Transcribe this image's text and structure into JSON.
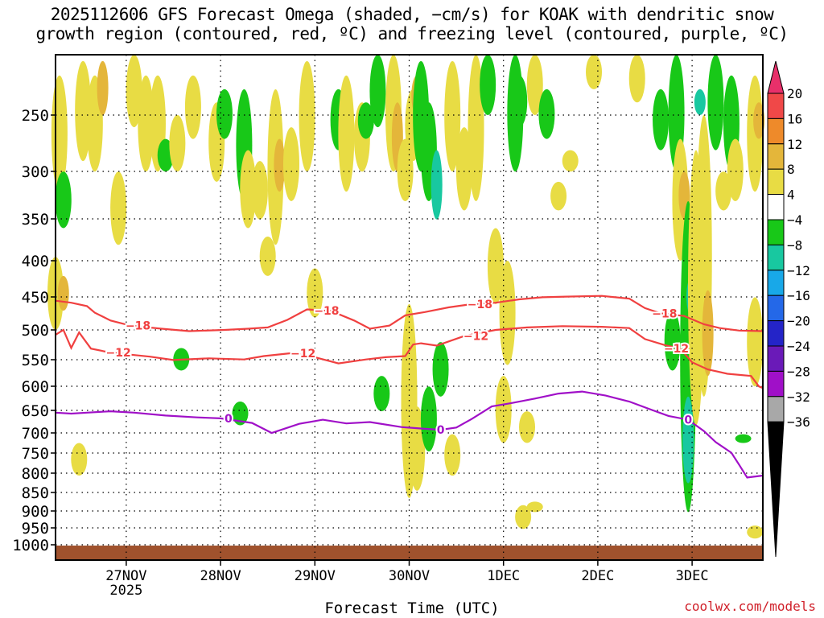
{
  "title_line1": "2025112606 GFS Forecast Omega (shaded, −cm/s) for KOAK with dendritic snow",
  "title_line2": "growth region (contoured, red, ºC) and freezing level (contoured, purple, ºC)",
  "credit": "coolwx.com/models",
  "chart_data": {
    "type": "heatmap",
    "xlabel": "Forecast Time (UTC)",
    "x_ticks": [
      {
        "label": "27NOV",
        "sub": "2025",
        "hours": 24
      },
      {
        "label": "28NOV",
        "sub": "",
        "hours": 48
      },
      {
        "label": "29NOV",
        "sub": "",
        "hours": 72
      },
      {
        "label": "30NOV",
        "sub": "",
        "hours": 96
      },
      {
        "label": "1DEC",
        "sub": "",
        "hours": 120
      },
      {
        "label": "2DEC",
        "sub": "",
        "hours": 144
      },
      {
        "label": "3DEC",
        "sub": "",
        "hours": 168
      }
    ],
    "xlim_hours": [
      6,
      186
    ],
    "y_axis": "pressure (hPa)",
    "y_ticks": [
      250,
      300,
      350,
      400,
      450,
      500,
      550,
      600,
      650,
      700,
      750,
      800,
      850,
      900,
      950,
      1000
    ],
    "ylim": [
      200,
      1020
    ],
    "colorbar": {
      "labels": [
        "20",
        "16",
        "12",
        "8",
        "4",
        "−4",
        "−8",
        "−12",
        "−16",
        "−20",
        "−24",
        "−28",
        "−32",
        "−36"
      ],
      "colors": [
        "#e8306a",
        "#f04848",
        "#ee8a2a",
        "#e4b63a",
        "#e8dc44",
        "#ffffff",
        "#18c818",
        "#18c8a0",
        "#18a8e8",
        "#2468e8",
        "#2424c8",
        "#6a1ab8",
        "#a010c8",
        "#a8a8a8",
        "#000000"
      ]
    },
    "shading": [
      {
        "t": 6,
        "p1": 395,
        "p2": 500,
        "v": 5
      },
      {
        "t": 8,
        "p1": 420,
        "p2": 470,
        "v": 9
      },
      {
        "t": 7,
        "p1": 220,
        "p2": 320,
        "v": 5
      },
      {
        "t": 8,
        "p1": 300,
        "p2": 360,
        "v": -6
      },
      {
        "t": 13,
        "p1": 210,
        "p2": 290,
        "v": 5
      },
      {
        "t": 16,
        "p1": 220,
        "p2": 300,
        "v": 6
      },
      {
        "t": 18,
        "p1": 210,
        "p2": 250,
        "v": 9
      },
      {
        "t": 22,
        "p1": 300,
        "p2": 380,
        "v": 5
      },
      {
        "t": 26,
        "p1": 200,
        "p2": 260,
        "v": 5
      },
      {
        "t": 29,
        "p1": 220,
        "p2": 300,
        "v": 5
      },
      {
        "t": 32,
        "p1": 220,
        "p2": 300,
        "v": 5
      },
      {
        "t": 34,
        "p1": 270,
        "p2": 300,
        "v": -6
      },
      {
        "t": 12,
        "p1": 720,
        "p2": 800,
        "v": 5
      },
      {
        "t": 37,
        "p1": 250,
        "p2": 300,
        "v": 5
      },
      {
        "t": 41,
        "p1": 220,
        "p2": 270,
        "v": 5
      },
      {
        "t": 47,
        "p1": 240,
        "p2": 310,
        "v": 5
      },
      {
        "t": 49,
        "p1": 230,
        "p2": 270,
        "v": -6
      },
      {
        "t": 54,
        "p1": 230,
        "p2": 330,
        "v": -6
      },
      {
        "t": 55,
        "p1": 280,
        "p2": 360,
        "v": 5
      },
      {
        "t": 58,
        "p1": 290,
        "p2": 350,
        "v": 5
      },
      {
        "t": 60,
        "p1": 370,
        "p2": 420,
        "v": 5
      },
      {
        "t": 62,
        "p1": 230,
        "p2": 380,
        "v": 5
      },
      {
        "t": 63,
        "p1": 270,
        "p2": 320,
        "v": 9
      },
      {
        "t": 66,
        "p1": 260,
        "p2": 330,
        "v": 5
      },
      {
        "t": 70,
        "p1": 210,
        "p2": 300,
        "v": 5
      },
      {
        "t": 72,
        "p1": 410,
        "p2": 480,
        "v": 5
      },
      {
        "t": 78,
        "p1": 230,
        "p2": 280,
        "v": -6
      },
      {
        "t": 80,
        "p1": 220,
        "p2": 320,
        "v": 5
      },
      {
        "t": 84,
        "p1": 240,
        "p2": 300,
        "v": 5
      },
      {
        "t": 88,
        "p1": 200,
        "p2": 260,
        "v": -6
      },
      {
        "t": 92,
        "p1": 200,
        "p2": 300,
        "v": 5
      },
      {
        "t": 93,
        "p1": 240,
        "p2": 300,
        "v": 9
      },
      {
        "t": 95,
        "p1": 270,
        "p2": 330,
        "v": 5
      },
      {
        "t": 97,
        "p1": 230,
        "p2": 290,
        "v": 5
      },
      {
        "t": 98,
        "p1": 220,
        "p2": 250,
        "v": 9
      },
      {
        "t": 99,
        "p1": 210,
        "p2": 300,
        "v": -6
      },
      {
        "t": 101,
        "p1": 240,
        "p2": 330,
        "v": -6
      },
      {
        "t": 103,
        "p1": 280,
        "p2": 350,
        "v": -10
      },
      {
        "t": 107,
        "p1": 210,
        "p2": 300,
        "v": 5
      },
      {
        "t": 110,
        "p1": 260,
        "p2": 340,
        "v": 5
      },
      {
        "t": 113,
        "p1": 200,
        "p2": 330,
        "v": 5
      },
      {
        "t": 116,
        "p1": 200,
        "p2": 250,
        "v": -6
      },
      {
        "t": 118,
        "p1": 360,
        "p2": 460,
        "v": 5
      },
      {
        "t": 121,
        "p1": 400,
        "p2": 560,
        "v": 5
      },
      {
        "t": 123,
        "p1": 200,
        "p2": 300,
        "v": -6
      },
      {
        "t": 124,
        "p1": 220,
        "p2": 260,
        "v": -6
      },
      {
        "t": 126,
        "p1": 650,
        "p2": 720,
        "v": 5
      },
      {
        "t": 128,
        "p1": 200,
        "p2": 250,
        "v": 5
      },
      {
        "t": 131,
        "p1": 230,
        "p2": 270,
        "v": -6
      },
      {
        "t": 134,
        "p1": 310,
        "p2": 340,
        "v": 5
      },
      {
        "t": 137,
        "p1": 280,
        "p2": 300,
        "v": 5
      },
      {
        "t": 143,
        "p1": 200,
        "p2": 230,
        "v": 5
      },
      {
        "t": 154,
        "p1": 200,
        "p2": 240,
        "v": 5
      },
      {
        "t": 160,
        "p1": 230,
        "p2": 280,
        "v": -6
      },
      {
        "t": 163,
        "p1": 470,
        "p2": 570,
        "v": -6
      },
      {
        "t": 164,
        "p1": 200,
        "p2": 300,
        "v": -6
      },
      {
        "t": 165,
        "p1": 270,
        "p2": 400,
        "v": 5
      },
      {
        "t": 166,
        "p1": 300,
        "p2": 350,
        "v": 9
      },
      {
        "t": 167,
        "p1": 330,
        "p2": 900,
        "v": -6
      },
      {
        "t": 168,
        "p1": 420,
        "p2": 480,
        "v": -10
      },
      {
        "t": 169,
        "p1": 280,
        "p2": 680,
        "v": 5
      },
      {
        "t": 170,
        "p1": 230,
        "p2": 250,
        "v": -10
      },
      {
        "t": 171,
        "p1": 250,
        "p2": 620,
        "v": 5
      },
      {
        "t": 172,
        "p1": 440,
        "p2": 580,
        "v": 9
      },
      {
        "t": 174,
        "p1": 200,
        "p2": 280,
        "v": -6
      },
      {
        "t": 176,
        "p1": 300,
        "p2": 340,
        "v": 5
      },
      {
        "t": 178,
        "p1": 220,
        "p2": 300,
        "v": -6
      },
      {
        "t": 179,
        "p1": 270,
        "p2": 330,
        "v": 5
      },
      {
        "t": 181,
        "p1": 700,
        "p2": 720,
        "v": -6
      },
      {
        "t": 184,
        "p1": 220,
        "p2": 320,
        "v": 5
      },
      {
        "t": 185,
        "p1": 240,
        "p2": 270,
        "v": 9
      },
      {
        "t": 184,
        "p1": 450,
        "p2": 600,
        "v": 5
      },
      {
        "t": 85,
        "p1": 240,
        "p2": 270,
        "v": -6
      },
      {
        "t": 89,
        "p1": 580,
        "p2": 650,
        "v": -6
      },
      {
        "t": 96,
        "p1": 460,
        "p2": 860,
        "v": 5
      },
      {
        "t": 98,
        "p1": 640,
        "p2": 840,
        "v": 5
      },
      {
        "t": 101,
        "p1": 600,
        "p2": 740,
        "v": -6
      },
      {
        "t": 104,
        "p1": 520,
        "p2": 620,
        "v": -6
      },
      {
        "t": 107,
        "p1": 700,
        "p2": 800,
        "v": 5
      },
      {
        "t": 125,
        "p1": 880,
        "p2": 950,
        "v": 5
      },
      {
        "t": 128,
        "p1": 870,
        "p2": 900,
        "v": 5
      },
      {
        "t": 120,
        "p1": 580,
        "p2": 720,
        "v": 5
      },
      {
        "t": 38,
        "p1": 530,
        "p2": 570,
        "v": -6
      },
      {
        "t": 53,
        "p1": 630,
        "p2": 680,
        "v": -6
      },
      {
        "t": 184,
        "p1": 940,
        "p2": 980,
        "v": 5
      },
      {
        "t": 167,
        "p1": 620,
        "p2": 820,
        "v": -10
      }
    ],
    "contours": [
      {
        "label": "−18",
        "color": "#f04040",
        "points": [
          [
            6,
            455
          ],
          [
            10,
            458
          ],
          [
            14,
            463
          ],
          [
            16,
            473
          ],
          [
            20,
            485
          ],
          [
            25,
            493
          ],
          [
            33,
            498
          ],
          [
            40,
            502
          ],
          [
            49,
            500
          ],
          [
            55,
            498
          ],
          [
            60,
            496
          ],
          [
            65,
            484
          ],
          [
            70,
            468
          ],
          [
            76,
            470
          ],
          [
            82,
            485
          ],
          [
            86,
            498
          ],
          [
            91,
            493
          ],
          [
            95,
            477
          ],
          [
            100,
            472
          ],
          [
            106,
            465
          ],
          [
            112,
            460
          ],
          [
            118,
            458
          ],
          [
            124,
            453
          ],
          [
            130,
            450
          ],
          [
            136,
            449
          ],
          [
            145,
            448
          ],
          [
            152,
            452
          ],
          [
            156,
            466
          ],
          [
            160,
            474
          ],
          [
            166,
            478
          ],
          [
            171,
            491
          ],
          [
            175,
            497
          ],
          [
            180,
            501
          ],
          [
            186,
            502
          ]
        ],
        "label_hours": [
          27,
          75,
          114,
          161
        ]
      },
      {
        "label": "−12",
        "color": "#f04040",
        "points": [
          [
            6,
            508
          ],
          [
            8,
            500
          ],
          [
            10,
            530
          ],
          [
            12,
            504
          ],
          [
            15,
            531
          ],
          [
            20,
            538
          ],
          [
            30,
            545
          ],
          [
            36,
            551
          ],
          [
            45,
            548
          ],
          [
            54,
            550
          ],
          [
            59,
            544
          ],
          [
            66,
            539
          ],
          [
            72,
            546
          ],
          [
            78,
            557
          ],
          [
            85,
            550
          ],
          [
            90,
            546
          ],
          [
            95,
            544
          ],
          [
            97,
            524
          ],
          [
            99,
            522
          ],
          [
            103,
            526
          ],
          [
            106,
            519
          ],
          [
            110,
            510
          ],
          [
            118,
            500
          ],
          [
            126,
            496
          ],
          [
            135,
            494
          ],
          [
            145,
            495
          ],
          [
            152,
            497
          ],
          [
            156,
            515
          ],
          [
            161,
            525
          ],
          [
            165,
            531
          ],
          [
            168,
            555
          ],
          [
            172,
            568
          ],
          [
            177,
            576
          ],
          [
            183,
            580
          ],
          [
            185,
            600
          ],
          [
            186,
            603
          ]
        ],
        "label_hours": [
          22,
          69,
          113,
          164
        ]
      },
      {
        "label": "0",
        "color": "#a010c8",
        "points": [
          [
            6,
            653
          ],
          [
            10,
            655
          ],
          [
            14,
            653
          ],
          [
            20,
            650
          ],
          [
            26,
            653
          ],
          [
            34,
            659
          ],
          [
            42,
            663
          ],
          [
            48,
            665
          ],
          [
            56,
            675
          ],
          [
            61,
            697
          ],
          [
            68,
            677
          ],
          [
            74,
            668
          ],
          [
            80,
            676
          ],
          [
            86,
            673
          ],
          [
            94,
            684
          ],
          [
            100,
            688
          ],
          [
            104,
            690
          ],
          [
            108,
            685
          ],
          [
            112,
            666
          ],
          [
            117,
            640
          ],
          [
            122,
            633
          ],
          [
            128,
            624
          ],
          [
            134,
            614
          ],
          [
            140,
            610
          ],
          [
            146,
            618
          ],
          [
            152,
            630
          ],
          [
            158,
            648
          ],
          [
            162,
            660
          ],
          [
            167,
            668
          ],
          [
            171,
            693
          ],
          [
            174,
            718
          ],
          [
            178,
            743
          ],
          [
            180,
            773
          ],
          [
            182,
            805
          ],
          [
            186,
            800
          ]
        ],
        "label_hours": [
          50,
          104,
          167
        ]
      }
    ]
  }
}
